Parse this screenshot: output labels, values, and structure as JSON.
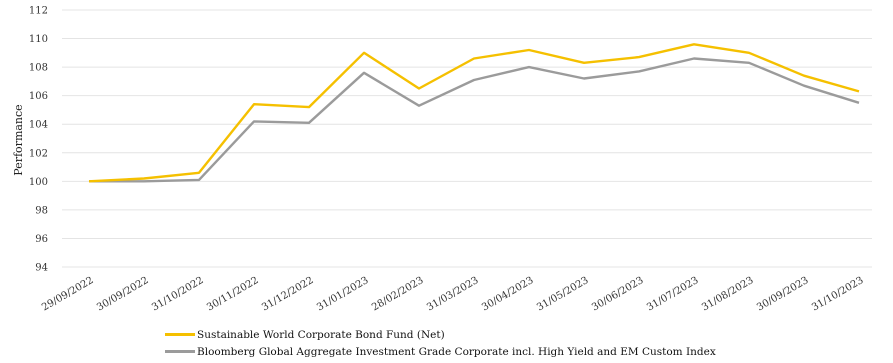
{
  "chart_data": {
    "type": "line",
    "title": "",
    "xlabel": "",
    "ylabel": "Performance",
    "ylim": [
      94,
      112
    ],
    "yticks": [
      94,
      96,
      98,
      100,
      102,
      104,
      106,
      108,
      110,
      112
    ],
    "grid": "horizontal",
    "legend_placement": "bottom-left",
    "categories": [
      "29/09/2022",
      "30/09/2022",
      "31/10/2022",
      "30/11/2022",
      "31/12/2022",
      "31/01/2023",
      "28/02/2023",
      "31/03/2023",
      "30/04/2023",
      "31/05/2023",
      "30/06/2023",
      "31/07/2023",
      "31/08/2023",
      "30/09/2023",
      "31/10/2023"
    ],
    "series": [
      {
        "name": "Sustainable World Corporate Bond Fund (Net)",
        "color": "#f5c000",
        "values": [
          100.0,
          100.2,
          100.6,
          105.4,
          105.2,
          109.0,
          106.5,
          108.6,
          109.2,
          108.3,
          108.7,
          109.6,
          109.0,
          107.4,
          106.3
        ]
      },
      {
        "name": "Bloomberg Global Aggregate Investment Grade Corporate incl. High Yield and EM Custom Index",
        "color": "#9b9b9b",
        "values": [
          100.0,
          100.0,
          100.1,
          104.2,
          104.1,
          107.6,
          105.3,
          107.1,
          108.0,
          107.2,
          107.7,
          108.6,
          108.3,
          106.7,
          105.5
        ]
      }
    ]
  }
}
